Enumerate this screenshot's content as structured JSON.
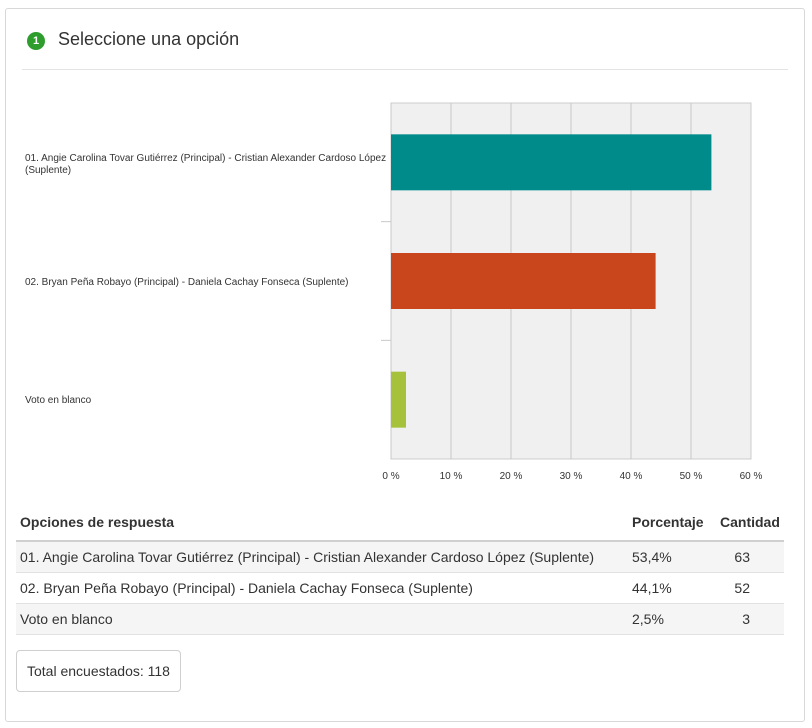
{
  "question": {
    "number": "1",
    "title": "Seleccione una opción"
  },
  "chart_data": {
    "type": "bar",
    "orientation": "horizontal",
    "categories": [
      "01. Angie Carolina Tovar Gutiérrez (Principal) - Cristian Alexander Cardoso López (Suplente)",
      "02. Bryan Peña Robayo (Principal) - Daniela Cachay Fonseca (Suplente)",
      "Voto en blanco"
    ],
    "category_labels": [
      "01. Angie Carolina Tovar Gutiérrez (Principal) - Cristian Alexander Cardoso López (Suplente)",
      "02. Bryan Peña Robayo (Principal) - Daniela Cachay Fonseca (Suplente)",
      "Voto en blanco"
    ],
    "values": [
      53.4,
      44.1,
      2.5
    ],
    "colors": [
      "#008b8b",
      "#c9451c",
      "#a5c23a"
    ],
    "xlim": [
      0,
      60
    ],
    "xticks": [
      "0 %",
      "10 %",
      "20 %",
      "30 %",
      "40 %",
      "50 %",
      "60 %"
    ],
    "grid": true,
    "plot_background": "#f0f0f0"
  },
  "table": {
    "headers": [
      "Opciones de respuesta",
      "Porcentaje",
      "Cantidad"
    ],
    "rows": [
      {
        "option": "01. Angie Carolina Tovar Gutiérrez (Principal) - Cristian Alexander Cardoso López (Suplente)",
        "percent": "53,4%",
        "count": "63"
      },
      {
        "option": "02. Bryan Peña Robayo (Principal) - Daniela Cachay Fonseca (Suplente)",
        "percent": "44,1%",
        "count": "52"
      },
      {
        "option": "Voto en blanco",
        "percent": "2,5%",
        "count": "3"
      }
    ]
  },
  "total": {
    "label": "Total encuestados: 118"
  }
}
